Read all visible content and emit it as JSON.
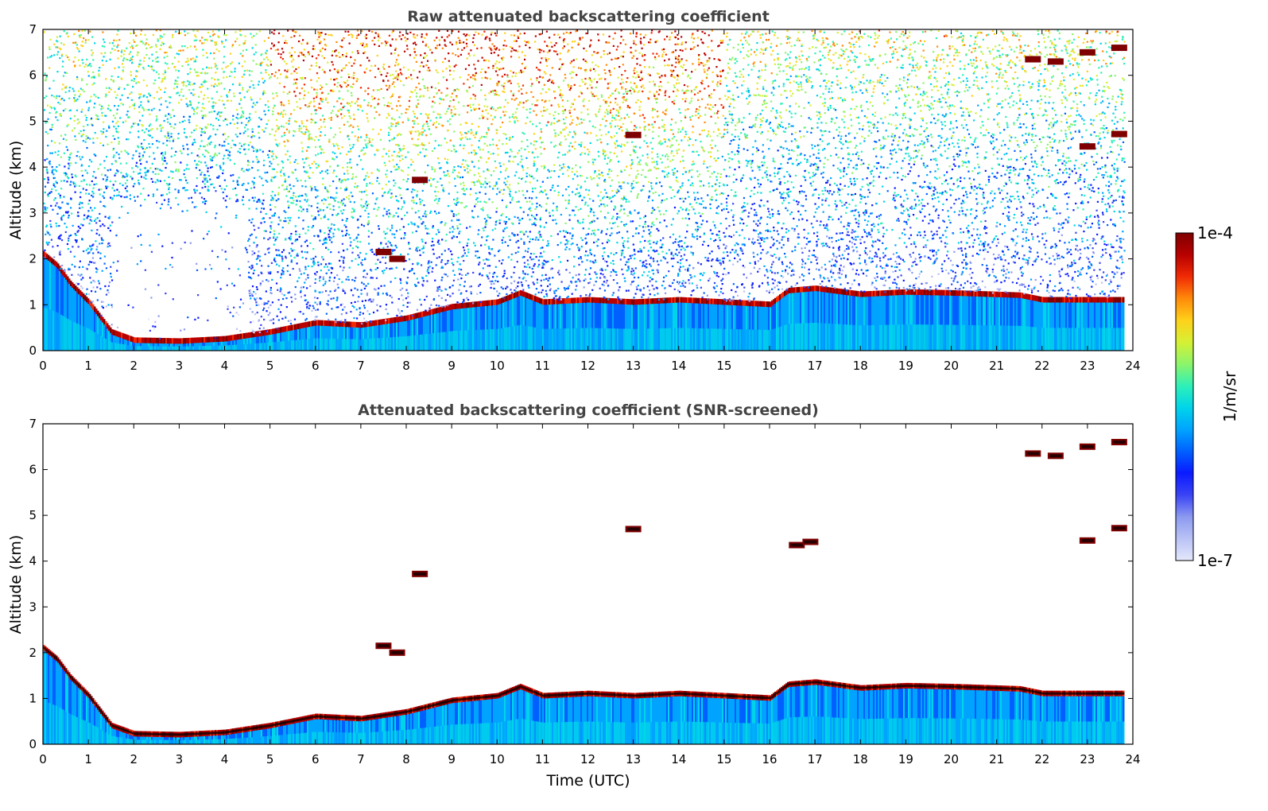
{
  "chart_data": [
    {
      "type": "heatmap",
      "title": "Raw attenuated backscattering coefficient",
      "xlabel": "",
      "ylabel": "Altitude (km)",
      "xlim": [
        0,
        24
      ],
      "ylim": [
        0,
        7
      ],
      "xticks": [
        "0",
        "1",
        "2",
        "3",
        "4",
        "5",
        "6",
        "7",
        "8",
        "9",
        "10",
        "11",
        "12",
        "13",
        "14",
        "15",
        "16",
        "17",
        "18",
        "19",
        "20",
        "21",
        "22",
        "23",
        "24"
      ],
      "yticks": [
        "0",
        "1",
        "2",
        "3",
        "4",
        "5",
        "6",
        "7"
      ],
      "data_end_time": 23.8,
      "boundary_layer_top": [
        [
          0,
          2.1
        ],
        [
          0.3,
          1.85
        ],
        [
          0.6,
          1.45
        ],
        [
          1.0,
          1.05
        ],
        [
          1.5,
          0.4
        ],
        [
          2.0,
          0.22
        ],
        [
          3.0,
          0.2
        ],
        [
          4.0,
          0.25
        ],
        [
          5.0,
          0.4
        ],
        [
          6.0,
          0.6
        ],
        [
          7.0,
          0.55
        ],
        [
          8.0,
          0.7
        ],
        [
          9.0,
          0.95
        ],
        [
          10.0,
          1.05
        ],
        [
          10.5,
          1.25
        ],
        [
          11.0,
          1.05
        ],
        [
          12.0,
          1.1
        ],
        [
          13.0,
          1.05
        ],
        [
          14.0,
          1.1
        ],
        [
          15.0,
          1.05
        ],
        [
          16.0,
          1.0
        ],
        [
          16.4,
          1.3
        ],
        [
          17.0,
          1.35
        ],
        [
          18.0,
          1.22
        ],
        [
          19.0,
          1.27
        ],
        [
          20.0,
          1.25
        ],
        [
          21.5,
          1.2
        ],
        [
          22.0,
          1.1
        ],
        [
          23.0,
          1.1
        ]
      ],
      "cloud_patches": [
        [
          8.3,
          3.72
        ],
        [
          7.5,
          2.15
        ],
        [
          7.8,
          2.0
        ],
        [
          13.0,
          4.7
        ],
        [
          21.8,
          6.35
        ],
        [
          22.3,
          6.3
        ],
        [
          23.0,
          6.5
        ],
        [
          23.7,
          6.6
        ],
        [
          23.0,
          4.45
        ],
        [
          23.7,
          4.72
        ]
      ],
      "noise": "high"
    },
    {
      "type": "heatmap",
      "title": "Attenuated backscattering coefficient (SNR-screened)",
      "xlabel": "Time (UTC)",
      "ylabel": "Altitude (km)",
      "xlim": [
        0,
        24
      ],
      "ylim": [
        0,
        7
      ],
      "xticks": [
        "0",
        "1",
        "2",
        "3",
        "4",
        "5",
        "6",
        "7",
        "8",
        "9",
        "10",
        "11",
        "12",
        "13",
        "14",
        "15",
        "16",
        "17",
        "18",
        "19",
        "20",
        "21",
        "22",
        "23",
        "24"
      ],
      "yticks": [
        "0",
        "1",
        "2",
        "3",
        "4",
        "5",
        "6",
        "7"
      ],
      "data_end_time": 23.8,
      "boundary_layer_top": [
        [
          0,
          2.1
        ],
        [
          0.3,
          1.85
        ],
        [
          0.6,
          1.45
        ],
        [
          1.0,
          1.05
        ],
        [
          1.5,
          0.4
        ],
        [
          2.0,
          0.22
        ],
        [
          3.0,
          0.2
        ],
        [
          4.0,
          0.25
        ],
        [
          5.0,
          0.4
        ],
        [
          6.0,
          0.6
        ],
        [
          7.0,
          0.55
        ],
        [
          8.0,
          0.7
        ],
        [
          9.0,
          0.95
        ],
        [
          10.0,
          1.05
        ],
        [
          10.5,
          1.25
        ],
        [
          11.0,
          1.05
        ],
        [
          12.0,
          1.1
        ],
        [
          13.0,
          1.05
        ],
        [
          14.0,
          1.1
        ],
        [
          15.0,
          1.05
        ],
        [
          16.0,
          1.0
        ],
        [
          16.4,
          1.3
        ],
        [
          17.0,
          1.35
        ],
        [
          18.0,
          1.22
        ],
        [
          19.0,
          1.27
        ],
        [
          20.0,
          1.25
        ],
        [
          21.5,
          1.2
        ],
        [
          22.0,
          1.1
        ],
        [
          23.0,
          1.1
        ]
      ],
      "cloud_patches": [
        [
          8.3,
          3.72
        ],
        [
          7.5,
          2.15
        ],
        [
          7.8,
          2.0
        ],
        [
          13.0,
          4.7
        ],
        [
          21.8,
          6.35
        ],
        [
          22.3,
          6.3
        ],
        [
          23.0,
          6.5
        ],
        [
          23.7,
          6.6
        ],
        [
          23.0,
          4.45
        ],
        [
          23.7,
          4.72
        ],
        [
          16.6,
          4.35
        ],
        [
          16.9,
          4.42
        ]
      ],
      "noise": "screened"
    }
  ],
  "colorbar": {
    "label": "1/m/sr",
    "max_label": "1e-4",
    "min_label": "1e-7",
    "colors": [
      "#e4e8fb",
      "#b9c2f5",
      "#8c9af0",
      "#3a44f5",
      "#0a1aff",
      "#0060ff",
      "#00a4ff",
      "#00d4ea",
      "#2ef0b8",
      "#8cf56a",
      "#d6f034",
      "#ffd11a",
      "#ff8a0a",
      "#f02a05",
      "#b80000",
      "#7f0000"
    ]
  }
}
